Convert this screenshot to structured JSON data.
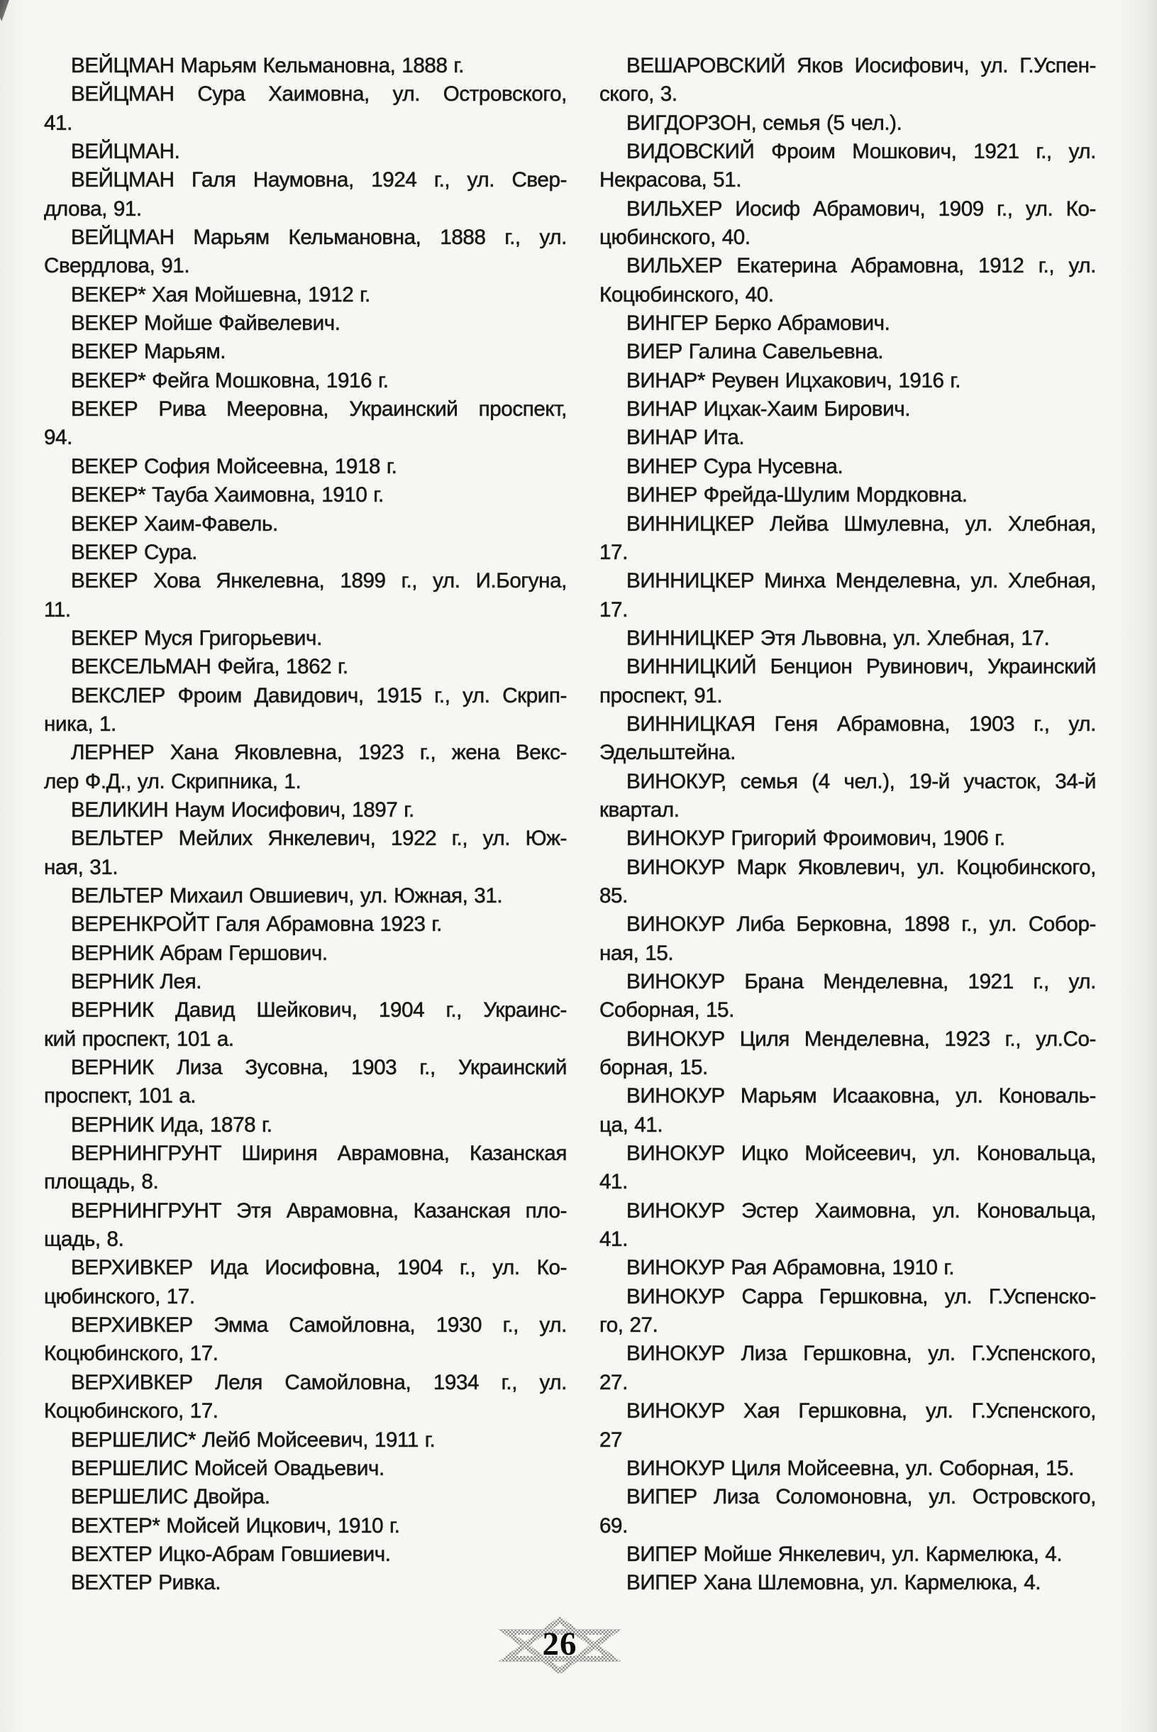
{
  "page": {
    "number": "26"
  },
  "columns": {
    "left": [
      [
        "ВЕЙЦМАН Марьям Кельмановна, 1888 г."
      ],
      [
        "ВЕЙЦМАН Сура Хаимовна, ул. Островского,",
        "41."
      ],
      [
        "ВЕЙЦМАН."
      ],
      [
        "ВЕЙЦМАН Галя Наумовна, 1924 г., ул. Свер-",
        "длова, 91."
      ],
      [
        "ВЕЙЦМАН Марьям Кельмановна, 1888 г., ул.",
        "Свердлова, 91."
      ],
      [
        "ВЕКЕР* Хая Мойшевна, 1912 г."
      ],
      [
        "ВЕКЕР Мойше Файвелевич."
      ],
      [
        "ВЕКЕР Марьям."
      ],
      [
        "ВЕКЕР* Фейга Мошковна, 1916 г."
      ],
      [
        "ВЕКЕР Рива Мееровна, Украинский проспект,",
        "94."
      ],
      [
        "ВЕКЕР София Мойсеевна, 1918 г."
      ],
      [
        "ВЕКЕР* Тауба Хаимовна, 1910 г."
      ],
      [
        "ВЕКЕР Хаим-Фавель."
      ],
      [
        "ВЕКЕР Сура."
      ],
      [
        "ВЕКЕР Хова Янкелевна, 1899 г., ул. И.Богуна,",
        "11."
      ],
      [
        "ВЕКЕР Муся Григорьевич."
      ],
      [
        "ВЕКСЕЛЬМАН Фейга, 1862 г."
      ],
      [
        "ВЕКСЛЕР Фроим Давидович, 1915 г., ул. Скрип-",
        "ника, 1."
      ],
      [
        "ЛЕРНЕР Хана Яковлевна, 1923 г., жена Векс-",
        "лер Ф.Д., ул. Скрипника, 1."
      ],
      [
        "ВЕЛИКИН Наум Иосифович, 1897 г."
      ],
      [
        "ВЕЛЬТЕР Мейлих Янкелевич, 1922 г., ул. Юж-",
        "ная, 31."
      ],
      [
        "ВЕЛЬТЕР Михаил Овшиевич, ул. Южная, 31."
      ],
      [
        "ВЕРЕНКРОЙТ Галя Абрамовна 1923 г."
      ],
      [
        "ВЕРНИК Абрам Гершович."
      ],
      [
        "ВЕРНИК Лея."
      ],
      [
        "ВЕРНИК Давид Шейкович, 1904 г., Украинс-",
        "кий проспект, 101 а."
      ],
      [
        "ВЕРНИК Лиза Зусовна, 1903 г., Украинский",
        "проспект, 101 а."
      ],
      [
        "ВЕРНИК Ида, 1878 г."
      ],
      [
        "ВЕРНИНГРУНТ Шириня Аврамовна, Казанская",
        "площадь, 8."
      ],
      [
        "ВЕРНИНГРУНТ Этя Аврамовна, Казанская пло-",
        "щадь, 8."
      ],
      [
        "ВЕРХИВКЕР Ида Иосифовна, 1904 г., ул. Ко-",
        "цюбинского, 17."
      ],
      [
        "ВЕРХИВКЕР Эмма Самойловна, 1930 г., ул.",
        "Коцюбинского, 17."
      ],
      [
        "ВЕРХИВКЕР Леля Самойловна, 1934 г., ул.",
        "Коцюбинского, 17."
      ],
      [
        "ВЕРШЕЛИС* Лейб Мойсеевич, 1911 г."
      ],
      [
        "ВЕРШЕЛИС Мойсей Овадьевич."
      ],
      [
        "ВЕРШЕЛИС Двойра."
      ],
      [
        "ВЕХТЕР* Мойсей Ицкович, 1910 г."
      ],
      [
        "ВЕХТЕР Ицко-Абрам Говшиевич."
      ],
      [
        "ВЕХТЕР Ривка."
      ]
    ],
    "right": [
      [
        "ВЕШАРОВСКИЙ Яков Иосифович, ул. Г.Успен-",
        "ского, 3."
      ],
      [
        "ВИГДОРЗОН, семья (5 чел.)."
      ],
      [
        "ВИДОВСКИЙ Фроим Мошкович, 1921 г., ул.",
        "Некрасова, 51."
      ],
      [
        "ВИЛЬХЕР Иосиф Абрамович, 1909 г., ул. Ко-",
        "цюбинского, 40."
      ],
      [
        "ВИЛЬХЕР Екатерина Абрамовна, 1912 г., ул.",
        "Коцюбинского, 40."
      ],
      [
        "ВИНГЕР Берко Абрамович."
      ],
      [
        "ВИЕР Галина Савельевна."
      ],
      [
        "ВИНАР* Реувен Ицхакович, 1916 г."
      ],
      [
        "ВИНАР Ицхак-Хаим Бирович."
      ],
      [
        "ВИНАР Ита."
      ],
      [
        "ВИНЕР Сура Нусевна."
      ],
      [
        "ВИНЕР Фрейда-Шулим Мордковна."
      ],
      [
        "ВИННИЦКЕР Лейва Шмулевна, ул. Хлебная,",
        "17."
      ],
      [
        "ВИННИЦКЕР Минха Менделевна, ул. Хлебная,",
        "17."
      ],
      [
        "ВИННИЦКЕР Этя Львовна, ул. Хлебная, 17."
      ],
      [
        "ВИННИЦКИЙ Бенцион Рувинович, Украинский",
        "проспект, 91."
      ],
      [
        "ВИННИЦКАЯ Геня Абрамовна, 1903 г., ул.",
        "Эдельштейна."
      ],
      [
        "ВИНОКУР, семья (4 чел.), 19-й участок, 34-й",
        "квартал."
      ],
      [
        "ВИНОКУР Григорий Фроимович, 1906 г."
      ],
      [
        "ВИНОКУР Марк Яковлевич, ул. Коцюбинского,",
        "85."
      ],
      [
        "ВИНОКУР Либа Берковна, 1898 г., ул. Собор-",
        "ная, 15."
      ],
      [
        "ВИНОКУР Брана Менделевна, 1921 г., ул.",
        "Соборная, 15."
      ],
      [
        "ВИНОКУР Циля Менделевна, 1923 г., ул.Со-",
        "борная, 15."
      ],
      [
        "ВИНОКУР Марьям Исааковна, ул. Коноваль-",
        "ца, 41."
      ],
      [
        "ВИНОКУР Ицко Мойсеевич, ул. Коновальца,",
        "41."
      ],
      [
        "ВИНОКУР Эстер Хаимовна, ул. Коновальца,",
        "41."
      ],
      [
        "ВИНОКУР Рая Абрамовна, 1910 г."
      ],
      [
        "ВИНОКУР Сарра Гершковна, ул. Г.Успенско-",
        "го, 27."
      ],
      [
        "ВИНОКУР Лиза Гершковна, ул. Г.Успенского,",
        "27."
      ],
      [
        "ВИНОКУР Хая Гершковна, ул. Г.Успенского,",
        "27"
      ],
      [
        "ВИНОКУР Циля Мойсеевна, ул. Соборная, 15."
      ],
      [
        "ВИПЕР Лиза Соломоновна, ул. Островского,",
        "69."
      ],
      [
        "ВИПЕР Мойше Янкелевич, ул. Кармелюка, 4."
      ],
      [
        "ВИПЕР Хана Шлемовна, ул. Кармелюка, 4."
      ]
    ]
  }
}
